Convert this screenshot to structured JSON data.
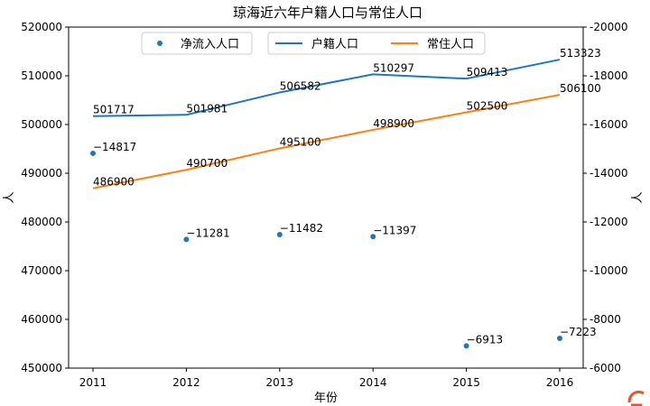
{
  "chart_data": {
    "type": "line",
    "title": "琼海近六年户籍人口与常住人口",
    "xlabel": "年份",
    "ylabel": "人",
    "y2label": "人",
    "categories": [
      "2011",
      "2012",
      "2013",
      "2014",
      "2015",
      "2016"
    ],
    "ylim": [
      450000,
      520000
    ],
    "yticks": [
      "450000",
      "460000",
      "470000",
      "480000",
      "490000",
      "500000",
      "510000",
      "520000"
    ],
    "y2lim": [
      -6000,
      -20000
    ],
    "y2ticks": [
      "-6000",
      "-8000",
      "-10000",
      "-12000",
      "-14000",
      "-16000",
      "-18000",
      "-20000"
    ],
    "legend": "top-center",
    "grid": false,
    "series": [
      {
        "name": "户籍人口",
        "kind": "line",
        "axis": "left",
        "color": "#1f77b4",
        "values": [
          501717,
          501981,
          506582,
          510297,
          509413,
          513323
        ],
        "labels": [
          "501717",
          "501981",
          "506582",
          "510297",
          "509413",
          "513323"
        ]
      },
      {
        "name": "常住人口",
        "kind": "line",
        "axis": "left",
        "color": "#ff7f0e",
        "values": [
          486900,
          490700,
          495100,
          498900,
          502500,
          506100
        ],
        "labels": [
          "486900",
          "490700",
          "495100",
          "498900",
          "502500",
          "506100"
        ]
      },
      {
        "name": "净流入人口",
        "kind": "scatter",
        "axis": "right",
        "color": "#1f77b4",
        "values": [
          -14817,
          -11281,
          -11482,
          -11397,
          -6913,
          -7223
        ],
        "labels": [
          "−14817",
          "−11281",
          "−11482",
          "−11397",
          "−6913",
          "−7223"
        ]
      }
    ]
  }
}
